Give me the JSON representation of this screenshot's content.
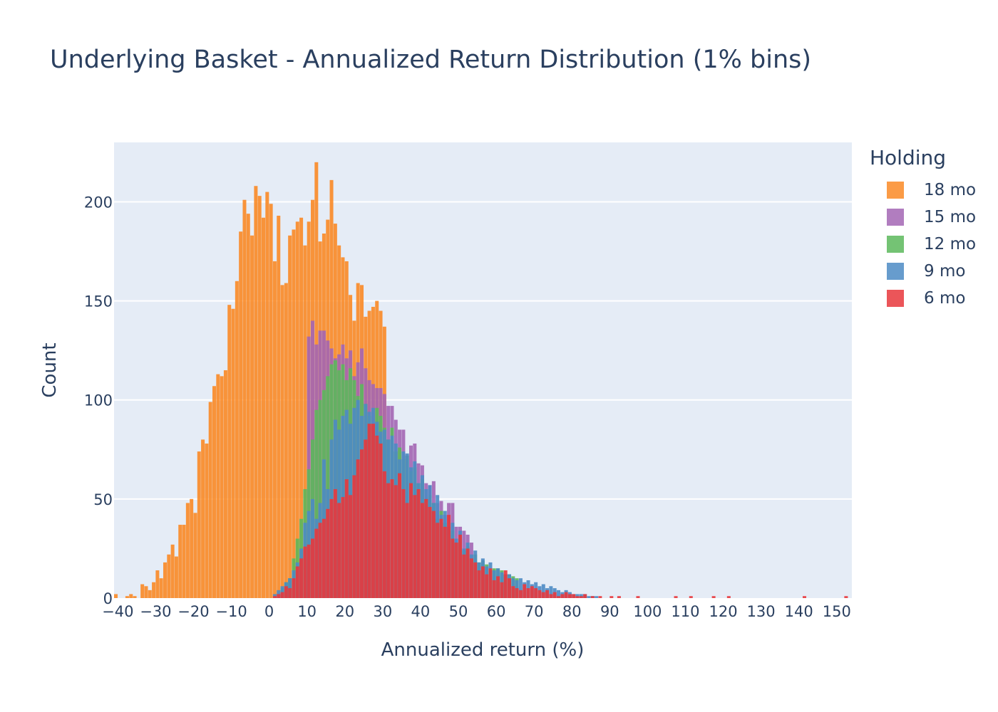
{
  "chart_data": {
    "type": "bar",
    "barmode": "overlay",
    "title": "Underlying Basket - Annualized Return Distribution (1% bins)",
    "xlabel": "Annualized return (%)",
    "ylabel": "Count",
    "bin_width": 1,
    "xlim": [
      -41,
      154
    ],
    "ylim": [
      0,
      230
    ],
    "x_ticks": [
      -40,
      -30,
      -20,
      -10,
      0,
      10,
      20,
      30,
      40,
      50,
      60,
      70,
      80,
      90,
      100,
      110,
      120,
      130,
      140,
      150
    ],
    "x_tick_labels": [
      "−40",
      "−30",
      "−20",
      "−10",
      "0",
      "10",
      "20",
      "30",
      "40",
      "50",
      "60",
      "70",
      "80",
      "90",
      "100",
      "110",
      "120",
      "130",
      "140",
      "150"
    ],
    "y_ticks": [
      0,
      50,
      100,
      150,
      200
    ],
    "y_tick_labels": [
      "0",
      "50",
      "100",
      "150",
      "200"
    ],
    "grid": true,
    "legend": {
      "title": "Holding",
      "position": "top-right",
      "items": [
        {
          "label": "18 mo",
          "color": "#fa8a26"
        },
        {
          "label": "15 mo",
          "color": "#a366b4"
        },
        {
          "label": "12 mo",
          "color": "#5cb85c"
        },
        {
          "label": "9 mo",
          "color": "#4c8bc4"
        },
        {
          "label": "6 mo",
          "color": "#e8373c"
        }
      ]
    },
    "series": [
      {
        "name": "18 mo",
        "color": "#fa8a26",
        "x_start": -41,
        "counts": [
          2,
          0,
          0,
          1,
          2,
          1,
          0,
          7,
          6,
          4,
          8,
          14,
          10,
          18,
          22,
          27,
          21,
          37,
          37,
          48,
          50,
          43,
          74,
          80,
          78,
          99,
          107,
          113,
          112,
          115,
          148,
          146,
          160,
          185,
          201,
          194,
          183,
          208,
          203,
          192,
          205,
          199,
          170,
          193,
          158,
          159,
          183,
          186,
          190,
          192,
          178,
          190,
          201,
          220,
          180,
          184,
          191,
          211,
          189,
          178,
          172,
          170,
          153,
          140,
          159,
          158,
          142,
          145,
          147,
          150,
          145,
          137
        ]
      },
      {
        "name": "15 mo",
        "color": "#a366b4",
        "x_start": 10,
        "counts": [
          132,
          140,
          128,
          135,
          135,
          130,
          126,
          121,
          123,
          128,
          121,
          125,
          112,
          119,
          126,
          116,
          110,
          108,
          106,
          106,
          103,
          97,
          97,
          90,
          85,
          85,
          72,
          77,
          78,
          68,
          67,
          58,
          57,
          59,
          48,
          49,
          42,
          48,
          48,
          36,
          36,
          34,
          32,
          28
        ]
      },
      {
        "name": "12 mo",
        "color": "#5cb85c",
        "x_start": 3,
        "counts": [
          5,
          8,
          10,
          20,
          30,
          40,
          55,
          65,
          80,
          95,
          100,
          105,
          112,
          118,
          120,
          115,
          118,
          110,
          116,
          110,
          102,
          108,
          98,
          92,
          86,
          96,
          92,
          86,
          80,
          86,
          74,
          76,
          70,
          72,
          64,
          66,
          58,
          60,
          50,
          52,
          48,
          40,
          44,
          38,
          32,
          34,
          28,
          30,
          24,
          26,
          20,
          22,
          18,
          19,
          17,
          14,
          15,
          15,
          14,
          12,
          12,
          11,
          10
        ]
      },
      {
        "name": "9 mo",
        "color": "#4c8bc4",
        "x_start": 1,
        "counts": [
          2,
          4,
          6,
          8,
          10,
          14,
          18,
          25,
          38,
          44,
          50,
          40,
          48,
          70,
          55,
          80,
          90,
          85,
          92,
          95,
          88,
          96,
          100,
          92,
          98,
          94,
          96,
          89,
          84,
          85,
          80,
          82,
          78,
          70,
          74,
          73,
          66,
          69,
          58,
          62,
          55,
          57,
          48,
          52,
          42,
          44,
          36,
          38,
          30,
          34,
          25,
          28,
          22,
          24,
          18,
          20,
          16,
          18,
          14,
          15,
          13,
          12,
          12,
          10,
          9,
          10,
          8,
          9,
          7,
          8,
          6,
          7,
          5,
          6,
          5,
          4,
          3,
          4,
          3,
          2,
          2,
          2,
          2,
          1,
          1,
          1
        ]
      },
      {
        "name": "6 mo",
        "color": "#e8373c",
        "x_start": 1,
        "counts": [
          1,
          2,
          3,
          6,
          5,
          10,
          16,
          20,
          26,
          27,
          30,
          35,
          38,
          40,
          45,
          50,
          55,
          48,
          51,
          60,
          52,
          62,
          70,
          75,
          80,
          88,
          88,
          82,
          78,
          64,
          58,
          60,
          57,
          63,
          55,
          48,
          58,
          52,
          55,
          48,
          50,
          46,
          44,
          38,
          40,
          36,
          42,
          30,
          28,
          32,
          22,
          25,
          20,
          18,
          14,
          16,
          12,
          15,
          9,
          11,
          8,
          14,
          10,
          6,
          5,
          4,
          7,
          5,
          6,
          5,
          4,
          3,
          4,
          2,
          3,
          1,
          2,
          3,
          2,
          2,
          1,
          1,
          2,
          0,
          1,
          0,
          1,
          0,
          0,
          1,
          0,
          1,
          0,
          0,
          0,
          0,
          1,
          0,
          0,
          0,
          0,
          0,
          0,
          0,
          0,
          0,
          1,
          0,
          0,
          0,
          1,
          0,
          0,
          0,
          0,
          0,
          1,
          0,
          0,
          0,
          1,
          0,
          0,
          0,
          0,
          0,
          0,
          0,
          0,
          0,
          0,
          0,
          0,
          0,
          0,
          0,
          0,
          0,
          0,
          0,
          1,
          0,
          0,
          0,
          0,
          0,
          0,
          0,
          0,
          0,
          0,
          1
        ]
      }
    ]
  }
}
